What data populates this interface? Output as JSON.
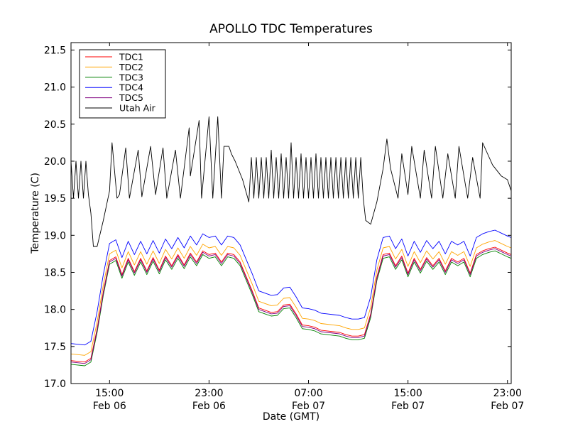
{
  "chart_data": {
    "type": "line",
    "title": "APOLLO TDC Temperatures",
    "xlabel": "Date (GMT)",
    "ylabel": "Temperature (C)",
    "xlim": [
      11.9,
      47.3
    ],
    "ylim": [
      17.0,
      21.6
    ],
    "yticks": [
      {
        "v": 17.0,
        "label": "17.0"
      },
      {
        "v": 17.5,
        "label": "17.5"
      },
      {
        "v": 18.0,
        "label": "18.0"
      },
      {
        "v": 18.5,
        "label": "18.5"
      },
      {
        "v": 19.0,
        "label": "19.0"
      },
      {
        "v": 19.5,
        "label": "19.5"
      },
      {
        "v": 20.0,
        "label": "20.0"
      },
      {
        "v": 20.5,
        "label": "20.5"
      },
      {
        "v": 21.0,
        "label": "21.0"
      },
      {
        "v": 21.5,
        "label": "21.5"
      }
    ],
    "xticks": [
      {
        "v": 15,
        "time": "15:00",
        "date": "Feb 06"
      },
      {
        "v": 23,
        "time": "23:00",
        "date": "Feb 06"
      },
      {
        "v": 31,
        "time": "07:00",
        "date": "Feb 07"
      },
      {
        "v": 39,
        "time": "15:00",
        "date": "Feb 07"
      },
      {
        "v": 47,
        "time": "23:00",
        "date": "Feb 07"
      }
    ],
    "series": [
      {
        "name": "TDC1",
        "color": "#ff0000",
        "offset": 0.04
      },
      {
        "name": "TDC2",
        "color": "#ffa500",
        "offset": 0.13
      },
      {
        "name": "TDC3",
        "color": "#008000",
        "offset": -0.01
      },
      {
        "name": "TDC4",
        "color": "#0000ff",
        "offset": 0.27
      },
      {
        "name": "TDC5",
        "color": "#800080",
        "offset": 0.02
      },
      {
        "name": "Utah Air",
        "color": "#000000"
      }
    ],
    "tdc_base": {
      "x": [
        11.9,
        13.0,
        13.5,
        14.0,
        14.5,
        15.0,
        15.5,
        16.0,
        16.5,
        17.0,
        17.5,
        18.0,
        18.5,
        19.0,
        19.5,
        20.0,
        20.5,
        21.0,
        21.5,
        22.0,
        22.5,
        23.0,
        23.5,
        24.0,
        24.5,
        25.0,
        25.5,
        26.0,
        26.5,
        27.0,
        27.5,
        28.0,
        28.5,
        29.0,
        29.5,
        30.0,
        30.5,
        31.0,
        31.5,
        32.0,
        32.5,
        33.0,
        33.5,
        34.0,
        34.5,
        35.0,
        35.5,
        36.0,
        36.5,
        37.0,
        37.5,
        38.0,
        38.5,
        39.0,
        39.5,
        40.0,
        40.5,
        41.0,
        41.5,
        42.0,
        42.5,
        43.0,
        43.5,
        44.0,
        44.5,
        45.0,
        45.5,
        46.0,
        46.5,
        47.0,
        47.3
      ],
      "y": [
        17.27,
        17.25,
        17.3,
        17.7,
        18.2,
        18.62,
        18.67,
        18.43,
        18.65,
        18.47,
        18.65,
        18.48,
        18.66,
        18.49,
        18.68,
        18.55,
        18.7,
        18.56,
        18.72,
        18.6,
        18.75,
        18.7,
        18.72,
        18.6,
        18.72,
        18.7,
        18.6,
        18.4,
        18.2,
        17.98,
        17.95,
        17.92,
        17.93,
        18.02,
        18.03,
        17.9,
        17.75,
        17.74,
        17.72,
        17.68,
        17.67,
        17.66,
        17.65,
        17.62,
        17.6,
        17.6,
        17.62,
        17.9,
        18.4,
        18.7,
        18.72,
        18.55,
        18.68,
        18.45,
        18.65,
        18.5,
        18.66,
        18.55,
        18.65,
        18.48,
        18.65,
        18.6,
        18.65,
        18.45,
        18.7,
        18.75,
        18.78,
        18.8,
        18.76,
        18.72,
        18.7
      ]
    },
    "air": {
      "x": [
        11.9,
        12.1,
        12.3,
        12.5,
        12.7,
        12.9,
        13.1,
        13.3,
        13.5,
        13.7,
        14.0,
        14.5,
        15.0,
        15.2,
        15.6,
        15.8,
        16.3,
        16.6,
        17.3,
        17.6,
        18.3,
        18.7,
        19.3,
        19.6,
        20.3,
        20.7,
        21.4,
        21.5,
        22.2,
        22.4,
        23.0,
        23.3,
        23.7,
        24.0,
        24.2,
        24.6,
        24.8,
        25.1,
        25.7,
        26.2,
        26.4,
        26.6,
        26.8,
        27.0,
        27.2,
        27.4,
        27.6,
        27.8,
        28.0,
        28.2,
        28.4,
        28.6,
        28.8,
        29.0,
        29.2,
        29.4,
        29.6,
        29.8,
        30.0,
        30.2,
        30.4,
        30.6,
        30.8,
        31.0,
        31.2,
        31.4,
        31.6,
        31.8,
        32.0,
        32.2,
        32.4,
        32.6,
        32.8,
        33.0,
        33.2,
        33.4,
        33.6,
        33.8,
        34.0,
        34.2,
        34.4,
        34.6,
        34.8,
        35.0,
        35.2,
        35.4,
        35.6,
        36.0,
        36.5,
        37.0,
        37.3,
        37.6,
        38.2,
        38.5,
        39.0,
        39.3,
        40.0,
        40.3,
        40.9,
        41.2,
        41.8,
        42.2,
        42.8,
        43.1,
        43.8,
        44.2,
        44.8,
        45.0,
        45.4,
        45.8,
        46.5,
        47.0,
        47.3
      ],
      "y": [
        20.0,
        19.5,
        20.0,
        19.5,
        20.0,
        19.5,
        20.0,
        19.55,
        19.3,
        18.85,
        18.85,
        19.2,
        19.6,
        20.25,
        19.5,
        19.55,
        20.18,
        19.5,
        20.15,
        19.52,
        20.2,
        19.55,
        20.18,
        19.5,
        20.15,
        19.5,
        20.45,
        19.8,
        20.55,
        19.5,
        20.6,
        19.5,
        20.6,
        19.5,
        20.2,
        20.2,
        20.1,
        20.0,
        19.75,
        19.45,
        20.05,
        19.5,
        20.05,
        19.5,
        20.05,
        19.5,
        20.05,
        19.5,
        20.15,
        19.5,
        20.05,
        19.5,
        20.1,
        19.5,
        20.05,
        19.5,
        20.25,
        19.5,
        20.05,
        19.5,
        20.1,
        19.5,
        20.05,
        19.5,
        20.05,
        19.5,
        20.1,
        19.5,
        20.05,
        19.5,
        20.05,
        19.5,
        20.05,
        19.5,
        20.05,
        19.5,
        20.05,
        19.5,
        20.05,
        19.5,
        20.05,
        19.5,
        20.05,
        19.5,
        20.05,
        19.5,
        19.2,
        19.15,
        19.45,
        19.9,
        20.3,
        19.9,
        19.5,
        20.1,
        19.55,
        20.2,
        19.5,
        20.15,
        19.5,
        20.2,
        19.5,
        20.1,
        19.5,
        20.2,
        19.5,
        20.05,
        19.5,
        20.25,
        20.1,
        19.95,
        19.8,
        19.75,
        19.6
      ]
    }
  }
}
